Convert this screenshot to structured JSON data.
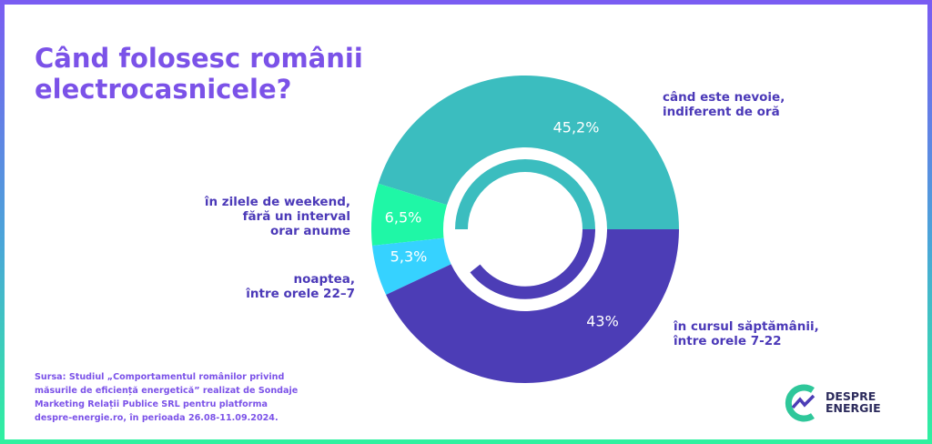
{
  "chart_data": {
    "type": "donut",
    "title": "Când folosesc românii\nelectrocasnicele?",
    "categories": [
      "când este nevoie,\nindiferent de oră",
      "în zilele de weekend,\nfără un interval\norar anume",
      "noaptea,\nîntre orele 22–7",
      "în cursul săptămânii,\nîntre orele 7-22"
    ],
    "values": [
      45.2,
      6.5,
      5.3,
      43
    ],
    "value_labels": [
      "45,2%",
      "6,5%",
      "5,3%",
      "43%"
    ],
    "colors": [
      "#3bbdbf",
      "#1ff7a6",
      "#36d2ff",
      "#4c3db6"
    ],
    "source": "Sursa: Studiul „Comportamentul românilor privind\nmăsurile de eficiență energetică” realizat de Sondaje\nMarketing Relații Publice SRL pentru platforma\ndespre-energie.ro, în perioada 26.08-11.09.2024.",
    "logo": "DESPRE\nENERGIE"
  }
}
